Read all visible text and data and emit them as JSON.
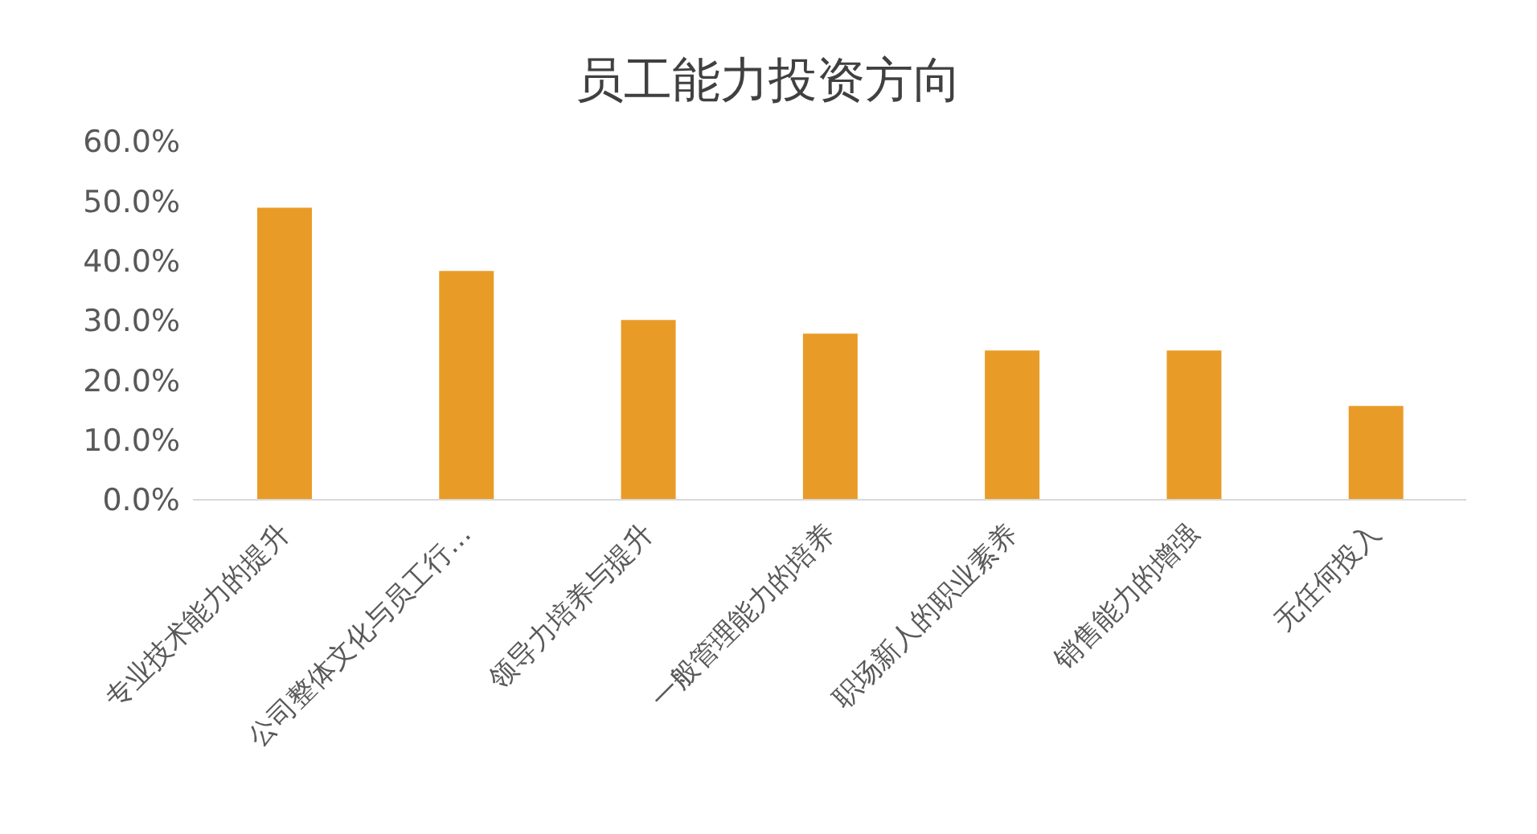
{
  "chart_data": {
    "type": "bar",
    "title": "员工能力投资方向",
    "categories": [
      "专业技术能力的提升",
      "公司整体文化与员工行…",
      "领导力培养与提升",
      "一般管理能力的培养",
      "职场新人的职业素养",
      "销售能力的增强",
      "无任何投入"
    ],
    "values": [
      48.9,
      38.3,
      30.1,
      27.8,
      25.0,
      25.0,
      15.7
    ],
    "color": "#e99b27",
    "ylim": [
      0,
      60
    ],
    "yticks": [
      {
        "value": 0,
        "label": "0.0%"
      },
      {
        "value": 10,
        "label": "10.0%"
      },
      {
        "value": 20,
        "label": "20.0%"
      },
      {
        "value": 30,
        "label": "30.0%"
      },
      {
        "value": 40,
        "label": "40.0%"
      },
      {
        "value": 50,
        "label": "50.0%"
      },
      {
        "value": 60,
        "label": "60.0%"
      }
    ],
    "grid": false,
    "legend": false
  }
}
